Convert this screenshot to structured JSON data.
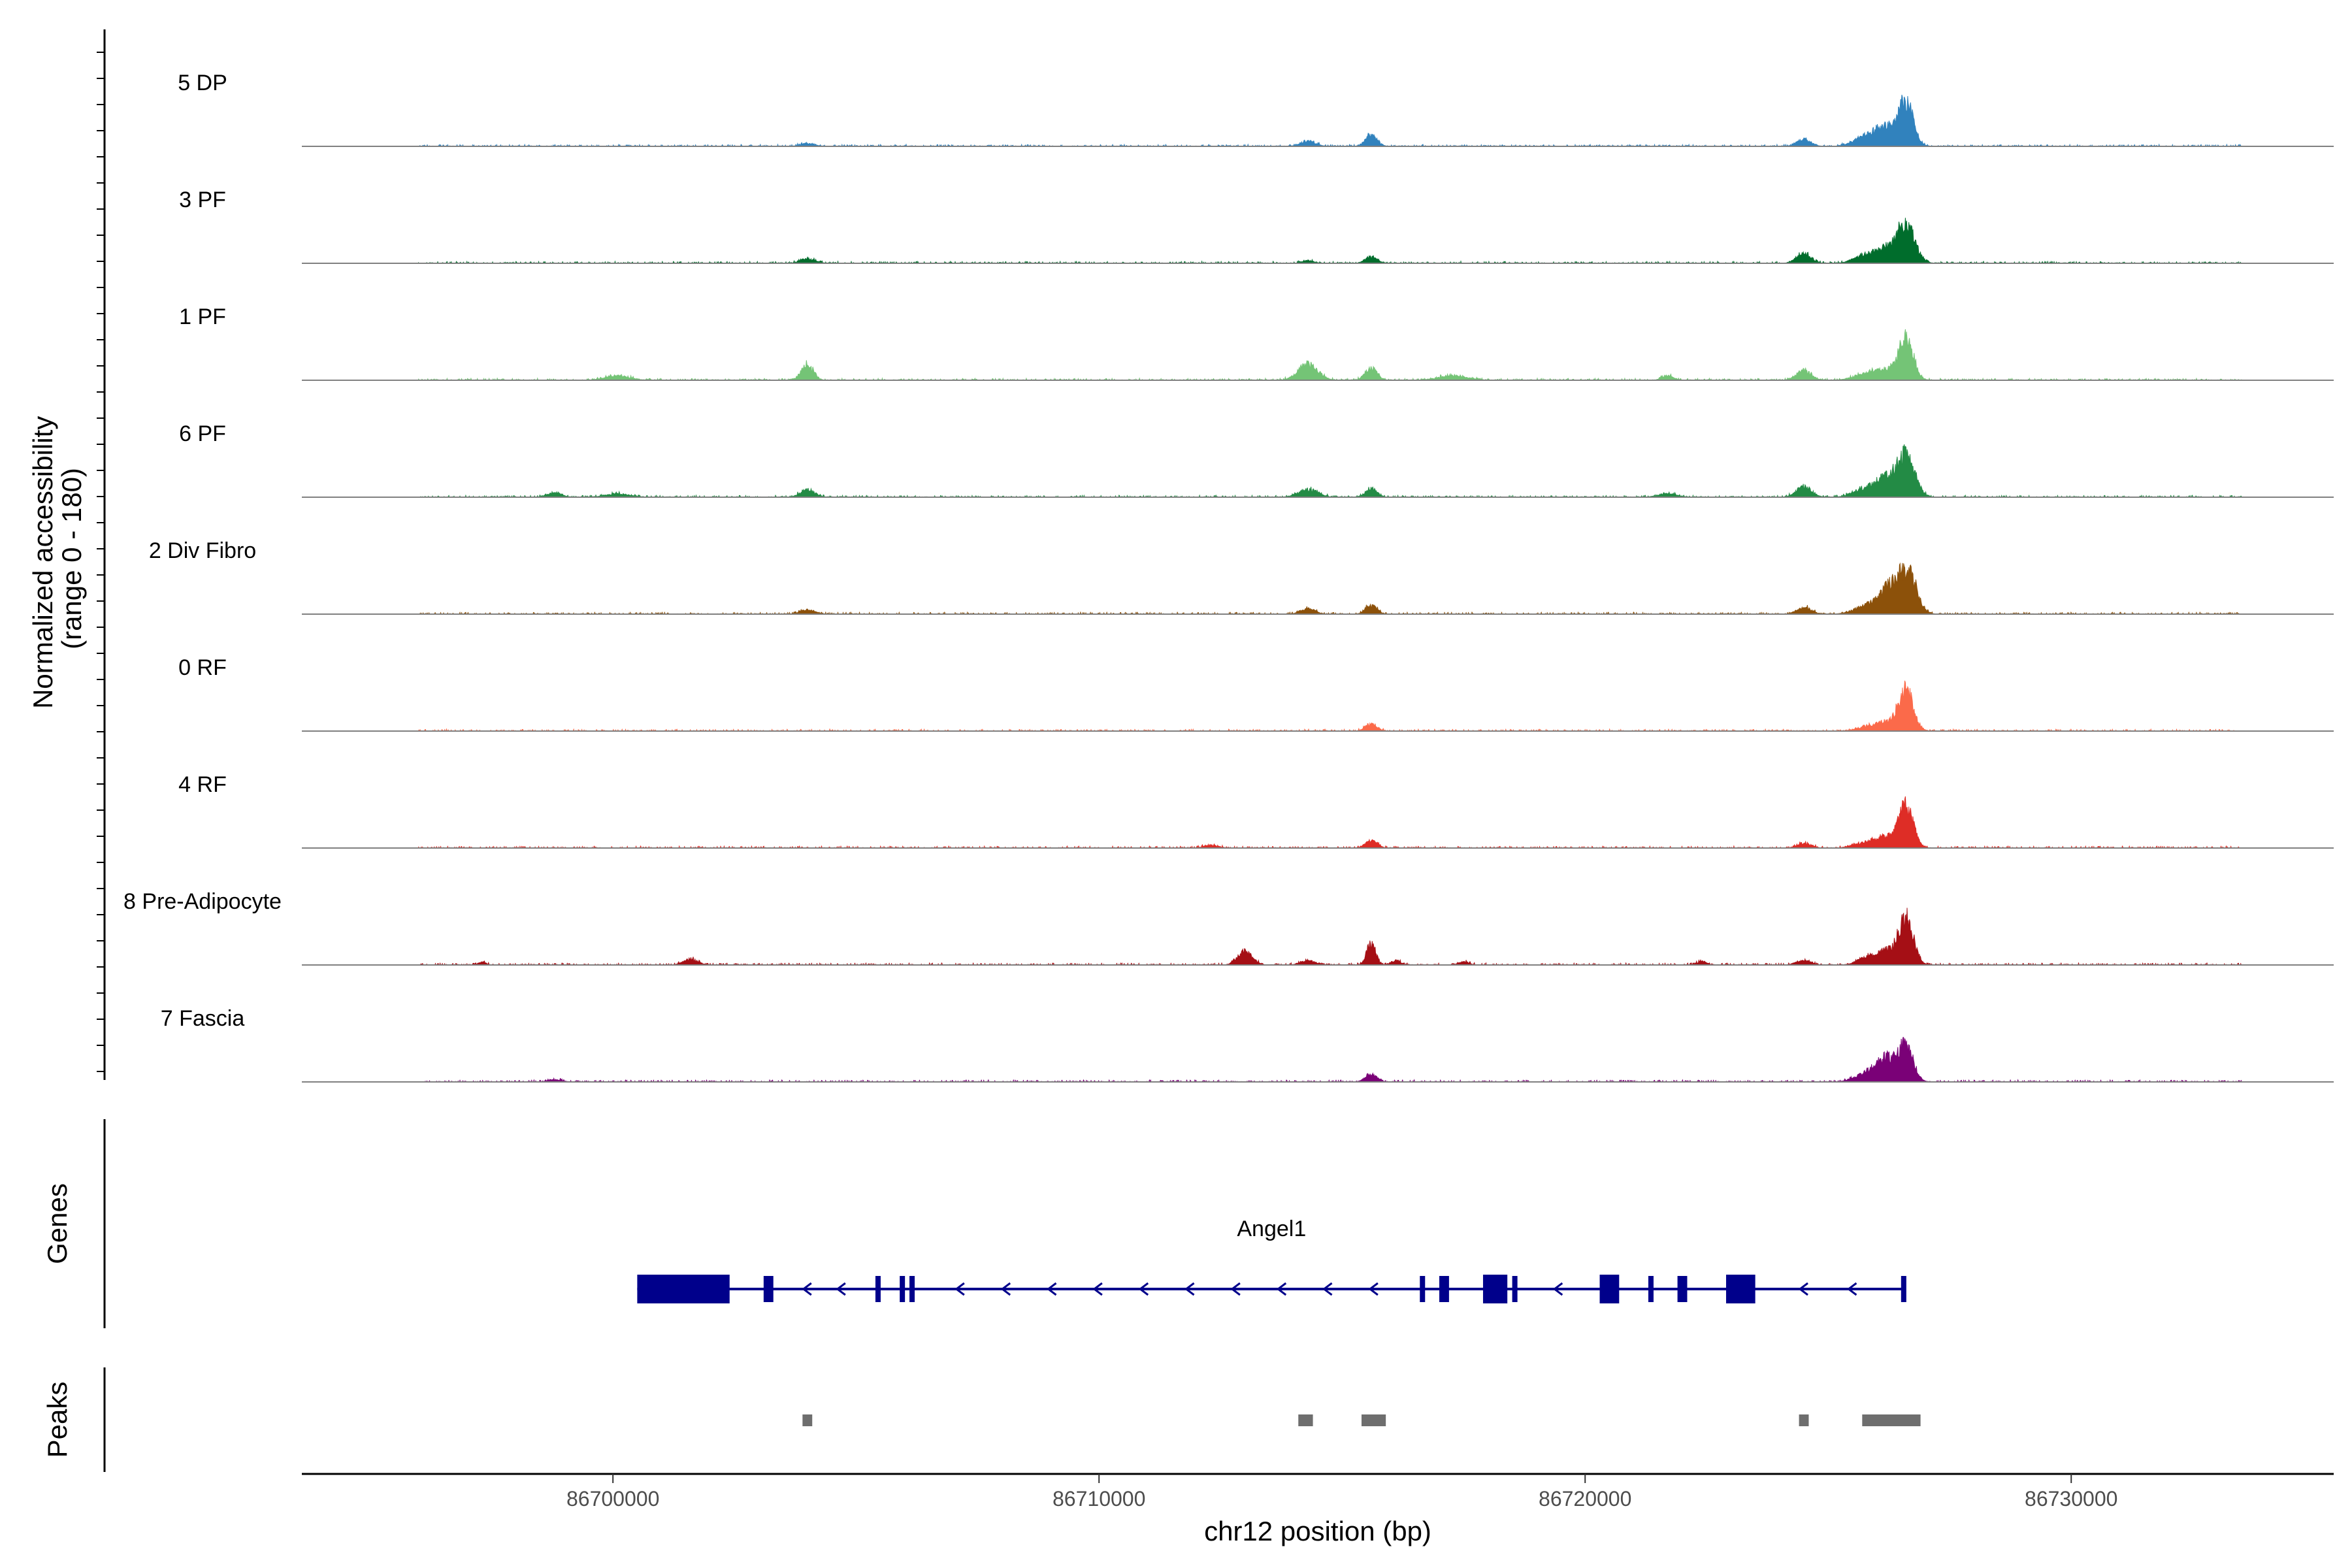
{
  "chart_data": {
    "type": "area",
    "title": "",
    "chromosome": "chr12",
    "xlim": [
      86693600,
      86735400
    ],
    "xlabel": "chr12 position (bp)",
    "xticks": [
      86700000,
      86710000,
      86720000,
      86730000
    ],
    "xtick_labels": [
      "86700000",
      "86710000",
      "86720000",
      "86730000"
    ],
    "coverage_panel": {
      "ylabel_line1": "Normalized accessibility",
      "ylabel_line2": "(range 0 - 180)",
      "ylim": [
        0,
        180
      ],
      "tracks": [
        {
          "name": "5 DP",
          "color": "#3182bd",
          "peaks": [
            [
              86704000,
              5,
              150
            ],
            [
              86714300,
              9,
              150
            ],
            [
              86715600,
              20,
              120
            ],
            [
              86724500,
              13,
              140
            ],
            [
              86725800,
              18,
              250
            ],
            [
              86726200,
              32,
              200
            ],
            [
              86726600,
              80,
              150
            ]
          ]
        },
        {
          "name": "3 PF",
          "color": "#006d2c",
          "peaks": [
            [
              86704000,
              8,
              150
            ],
            [
              86714300,
              5,
              120
            ],
            [
              86715600,
              12,
              120
            ],
            [
              86724500,
              18,
              150
            ],
            [
              86725800,
              15,
              250
            ],
            [
              86726200,
              22,
              200
            ],
            [
              86726600,
              70,
              180
            ]
          ]
        },
        {
          "name": "1 PF",
          "color": "#74c476",
          "peaks": [
            [
              86700100,
              8,
              250
            ],
            [
              86704000,
              30,
              120
            ],
            [
              86714300,
              30,
              200
            ],
            [
              86715600,
              22,
              120
            ],
            [
              86717300,
              8,
              300
            ],
            [
              86721700,
              8,
              120
            ],
            [
              86724500,
              18,
              150
            ],
            [
              86725800,
              12,
              250
            ],
            [
              86726200,
              15,
              200
            ],
            [
              86726600,
              80,
              150
            ]
          ]
        },
        {
          "name": "6 PF",
          "color": "#238b45",
          "peaks": [
            [
              86698800,
              8,
              150
            ],
            [
              86700100,
              6,
              250
            ],
            [
              86704000,
              14,
              150
            ],
            [
              86714300,
              14,
              200
            ],
            [
              86715600,
              16,
              120
            ],
            [
              86721700,
              6,
              200
            ],
            [
              86724500,
              20,
              150
            ],
            [
              86725800,
              16,
              250
            ],
            [
              86726200,
              30,
              200
            ],
            [
              86726600,
              75,
              180
            ]
          ]
        },
        {
          "name": "2 Div Fibro",
          "color": "#8c510a",
          "peaks": [
            [
              86704000,
              8,
              150
            ],
            [
              86714300,
              10,
              150
            ],
            [
              86715600,
              16,
              120
            ],
            [
              86724500,
              12,
              150
            ],
            [
              86725800,
              15,
              250
            ],
            [
              86726400,
              65,
              250
            ],
            [
              86726700,
              40,
              150
            ]
          ]
        },
        {
          "name": "0 RF",
          "color": "#fb6a4a",
          "peaks": [
            [
              86715600,
              12,
              120
            ],
            [
              86725800,
              8,
              200
            ],
            [
              86726200,
              15,
              200
            ],
            [
              86726600,
              75,
              150
            ]
          ]
        },
        {
          "name": "4 RF",
          "color": "#de2d26",
          "peaks": [
            [
              86712300,
              5,
              150
            ],
            [
              86715600,
              14,
              120
            ],
            [
              86724500,
              8,
              150
            ],
            [
              86725800,
              10,
              250
            ],
            [
              86726200,
              18,
              200
            ],
            [
              86726600,
              75,
              150
            ]
          ]
        },
        {
          "name": "8 Pre-Adipocyte",
          "color": "#a50f15",
          "peaks": [
            [
              86697300,
              5,
              80
            ],
            [
              86701600,
              10,
              150
            ],
            [
              86713000,
              24,
              150
            ],
            [
              86714300,
              8,
              150
            ],
            [
              86715600,
              40,
              90
            ],
            [
              86716100,
              8,
              100
            ],
            [
              86717500,
              6,
              100
            ],
            [
              86722400,
              6,
              100
            ],
            [
              86724500,
              8,
              150
            ],
            [
              86725800,
              12,
              200
            ],
            [
              86726200,
              25,
              200
            ],
            [
              86726600,
              85,
              150
            ]
          ]
        },
        {
          "name": "7 Fascia",
          "color": "#7a0177",
          "peaks": [
            [
              86698800,
              4,
              150
            ],
            [
              86715600,
              14,
              120
            ],
            [
              86725800,
              15,
              250
            ],
            [
              86726200,
              40,
              200
            ],
            [
              86726600,
              65,
              150
            ]
          ]
        }
      ]
    },
    "genes_panel": {
      "label": "Genes",
      "gene": {
        "name": "Angel1",
        "start": 86700500,
        "end": 86726600,
        "strand": "-"
      },
      "exons": [
        [
          86700500,
          86702400
        ],
        [
          86703100,
          86703300
        ],
        [
          86705400,
          86705500
        ],
        [
          86705900,
          86706000
        ],
        [
          86706100,
          86706200
        ],
        [
          86716600,
          86716700
        ],
        [
          86717000,
          86717200
        ],
        [
          86717900,
          86718400
        ],
        [
          86718500,
          86718600
        ],
        [
          86720300,
          86720700
        ],
        [
          86721300,
          86721400
        ],
        [
          86721900,
          86722100
        ],
        [
          86722900,
          86723500
        ],
        [
          86726500,
          86726600
        ]
      ]
    },
    "peaks_panel": {
      "label": "Peaks",
      "regions": [
        [
          86703900,
          86704100
        ],
        [
          86714100,
          86714400
        ],
        [
          86715400,
          86715900
        ],
        [
          86724400,
          86724600
        ],
        [
          86725700,
          86726900
        ]
      ]
    }
  }
}
